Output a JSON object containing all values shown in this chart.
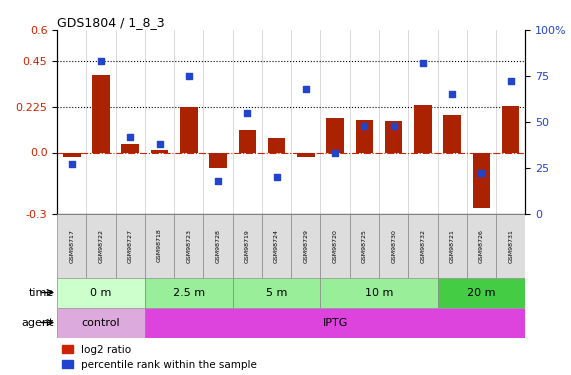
{
  "title": "GDS1804 / 1_8_3",
  "samples": [
    "GSM98717",
    "GSM98722",
    "GSM98727",
    "GSM98718",
    "GSM98723",
    "GSM98728",
    "GSM98719",
    "GSM98724",
    "GSM98729",
    "GSM98720",
    "GSM98725",
    "GSM98730",
    "GSM98732",
    "GSM98721",
    "GSM98726",
    "GSM98731"
  ],
  "log2_ratio": [
    -0.02,
    0.38,
    0.04,
    0.01,
    0.225,
    -0.075,
    0.11,
    0.07,
    -0.02,
    0.17,
    0.16,
    0.155,
    0.235,
    0.185,
    -0.27,
    0.23
  ],
  "pct_rank": [
    27,
    83,
    42,
    38,
    75,
    18,
    55,
    20,
    68,
    33,
    48,
    48,
    82,
    65,
    22,
    72
  ],
  "ylim_left": [
    -0.3,
    0.6
  ],
  "ylim_right": [
    0,
    100
  ],
  "yticks_left": [
    -0.3,
    0.0,
    0.225,
    0.45,
    0.6
  ],
  "yticks_right": [
    0,
    25,
    50,
    75,
    100
  ],
  "hlines": [
    0.45,
    0.225
  ],
  "bar_color": "#aa2200",
  "dot_color": "#2244cc",
  "time_groups": [
    {
      "label": "0 m",
      "start": 0,
      "end": 3,
      "color": "#ccffcc"
    },
    {
      "label": "2.5 m",
      "start": 3,
      "end": 6,
      "color": "#99ee99"
    },
    {
      "label": "5 m",
      "start": 6,
      "end": 9,
      "color": "#99ee99"
    },
    {
      "label": "10 m",
      "start": 9,
      "end": 13,
      "color": "#99ee99"
    },
    {
      "label": "20 m",
      "start": 13,
      "end": 16,
      "color": "#44cc44"
    }
  ],
  "agent_groups": [
    {
      "label": "control",
      "start": 0,
      "end": 3,
      "color": "#ddaadd"
    },
    {
      "label": "IPTG",
      "start": 3,
      "end": 16,
      "color": "#dd44dd"
    }
  ],
  "time_label": "time",
  "agent_label": "agent",
  "legend_bar": "log2 ratio",
  "legend_dot": "percentile rank within the sample",
  "bar_color_legend": "#cc2200",
  "dot_color_legend": "#2244cc"
}
